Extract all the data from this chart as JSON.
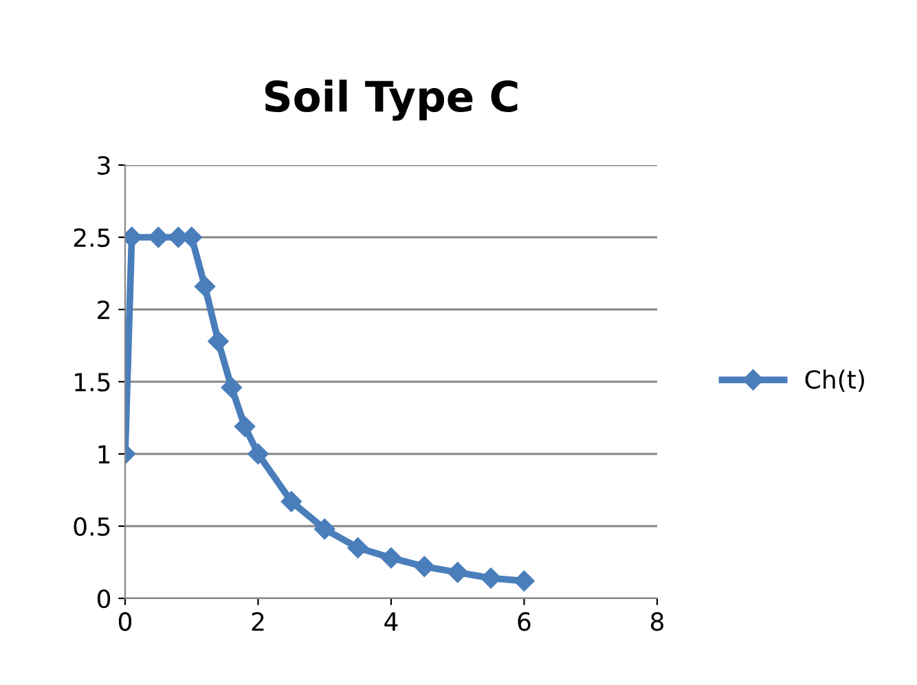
{
  "chart_data": {
    "type": "line",
    "title": "Soil Type C",
    "x": [
      0,
      0.1,
      0.5,
      0.8,
      1,
      1.2,
      1.4,
      1.6,
      1.8,
      2,
      2.5,
      3,
      3.5,
      4,
      4.5,
      5,
      5.5,
      6
    ],
    "series": [
      {
        "name": "Ch(t)",
        "color": "#4a7ebb",
        "values": [
          1,
          2.5,
          2.5,
          2.5,
          2.5,
          2.16,
          1.78,
          1.46,
          1.19,
          1.0,
          0.67,
          0.48,
          0.35,
          0.28,
          0.22,
          0.18,
          0.14,
          0.12
        ]
      }
    ],
    "xlim": [
      0,
      8
    ],
    "xticks": [
      0,
      2,
      4,
      6,
      8
    ],
    "ylim": [
      0,
      3
    ],
    "yticks": [
      0,
      0.5,
      1,
      1.5,
      2,
      2.5,
      3
    ],
    "grid": "y",
    "legend": "right",
    "marker": "diamond",
    "line_style": "solid"
  }
}
